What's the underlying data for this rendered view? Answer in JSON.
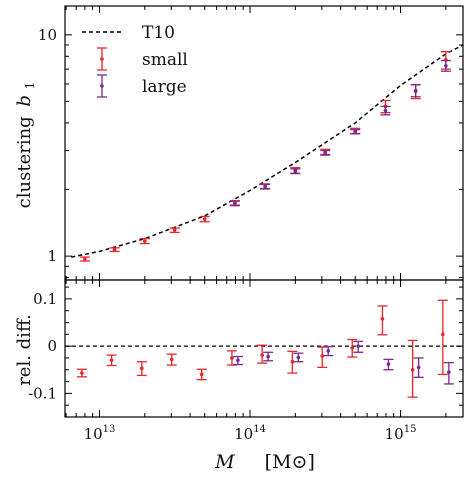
{
  "colors": {
    "small": "#e8262a",
    "large": "#7a2a8c",
    "model": "#000000",
    "frame": "#000000"
  },
  "chart_data": [
    {
      "type": "line",
      "panel": "top",
      "ylabel": "clustering b1",
      "ylabel_text": "clustering",
      "ylabel_symbol": "b",
      "ylabel_sub": "1",
      "x_scale": "log",
      "y_scale": "log",
      "xlim": [
        5900000000000.0,
        2600000000000000.0
      ],
      "ylim": [
        0.78,
        13.5
      ],
      "y_ticks": [
        {
          "value": 1,
          "label": "1"
        },
        {
          "value": 10,
          "label": "10"
        }
      ],
      "legend": {
        "placement": "top-left",
        "entries": [
          {
            "key": "model",
            "label": "T10",
            "style": "dashed line"
          },
          {
            "key": "small",
            "label": "small",
            "style": "errorbar"
          },
          {
            "key": "large",
            "label": "large",
            "style": "errorbar"
          }
        ]
      },
      "model_curve": {
        "name": "T10",
        "points": [
          [
            6500000000000.0,
            0.99
          ],
          [
            10000000000000.0,
            1.05
          ],
          [
            20000000000000.0,
            1.2
          ],
          [
            50000000000000.0,
            1.52
          ],
          [
            100000000000000.0,
            1.98
          ],
          [
            200000000000000.0,
            2.65
          ],
          [
            500000000000000.0,
            4.0
          ],
          [
            1000000000000000.0,
            5.9
          ],
          [
            2000000000000000.0,
            8.2
          ],
          [
            2600000000000000.0,
            9.0
          ]
        ]
      },
      "series": [
        {
          "name": "small",
          "points": [
            {
              "x": 8000000000000.0,
              "y": 0.97,
              "err": 0.02
            },
            {
              "x": 12600000000000.0,
              "y": 1.07,
              "err": 0.02
            },
            {
              "x": 20000000000000.0,
              "y": 1.17,
              "err": 0.03
            },
            {
              "x": 31600000000000.0,
              "y": 1.31,
              "err": 0.03
            },
            {
              "x": 50000000000000.0,
              "y": 1.47,
              "err": 0.04
            },
            {
              "x": 79400000000000.0,
              "y": 1.74,
              "err": 0.04
            },
            {
              "x": 126000000000000.0,
              "y": 2.07,
              "err": 0.05
            },
            {
              "x": 200000000000000.0,
              "y": 2.44,
              "err": 0.07
            },
            {
              "x": 316000000000000.0,
              "y": 2.96,
              "err": 0.08
            },
            {
              "x": 500000000000000.0,
              "y": 3.68,
              "err": 0.1
            },
            {
              "x": 794000000000000.0,
              "y": 4.75,
              "err": 0.3
            },
            {
              "x": 1260000000000000.0,
              "y": 5.55,
              "err": 0.4
            },
            {
              "x": 2000000000000000.0,
              "y": 7.7,
              "err": 0.7
            }
          ]
        },
        {
          "name": "large",
          "points": [
            {
              "x": 79400000000000.0,
              "y": 1.73,
              "err": 0.04
            },
            {
              "x": 126000000000000.0,
              "y": 2.06,
              "err": 0.05
            },
            {
              "x": 200000000000000.0,
              "y": 2.42,
              "err": 0.06
            },
            {
              "x": 316000000000000.0,
              "y": 2.93,
              "err": 0.07
            },
            {
              "x": 500000000000000.0,
              "y": 3.65,
              "err": 0.08
            },
            {
              "x": 794000000000000.0,
              "y": 4.55,
              "err": 0.2
            },
            {
              "x": 1260000000000000.0,
              "y": 5.6,
              "err": 0.35
            },
            {
              "x": 2000000000000000.0,
              "y": 7.25,
              "err": 0.4
            }
          ]
        }
      ]
    },
    {
      "type": "scatter",
      "panel": "bottom",
      "ylabel": "rel. diff.",
      "xlabel": "M [M⊙]",
      "xlabel_symbol": "M",
      "xlabel_unit": "[M⊙]",
      "x_scale": "log",
      "xlim": [
        5900000000000.0,
        2600000000000000.0
      ],
      "ylim": [
        -0.15,
        0.14
      ],
      "reference_line": 0,
      "y_ticks": [
        {
          "value": 0.1,
          "label": "0.1"
        },
        {
          "value": 0,
          "label": "0"
        },
        {
          "value": -0.1,
          "label": "-0.1"
        }
      ],
      "x_ticks": [
        {
          "value": 10000000000000.0,
          "base": "10",
          "exp": "13"
        },
        {
          "value": 100000000000000.0,
          "base": "10",
          "exp": "14"
        },
        {
          "value": 1000000000000000.0,
          "base": "10",
          "exp": "15"
        }
      ],
      "series": [
        {
          "name": "small",
          "points": [
            {
              "x": 8000000000000.0,
              "y": -0.057,
              "lo": -0.065,
              "hi": -0.049
            },
            {
              "x": 12600000000000.0,
              "y": -0.03,
              "lo": -0.041,
              "hi": -0.019
            },
            {
              "x": 20000000000000.0,
              "y": -0.047,
              "lo": -0.062,
              "hi": -0.033
            },
            {
              "x": 31600000000000.0,
              "y": -0.028,
              "lo": -0.04,
              "hi": -0.017
            },
            {
              "x": 50000000000000.0,
              "y": -0.06,
              "lo": -0.071,
              "hi": -0.049
            },
            {
              "x": 79400000000000.0,
              "y": -0.025,
              "lo": -0.04,
              "hi": -0.01
            },
            {
              "x": 126000000000000.0,
              "y": -0.019,
              "lo": -0.036,
              "hi": 0.002
            },
            {
              "x": 200000000000000.0,
              "y": -0.033,
              "lo": -0.057,
              "hi": -0.011
            },
            {
              "x": 316000000000000.0,
              "y": -0.021,
              "lo": -0.045,
              "hi": -0.002
            },
            {
              "x": 500000000000000.0,
              "y": -0.004,
              "lo": -0.023,
              "hi": 0.014
            },
            {
              "x": 794000000000000.0,
              "y": 0.058,
              "lo": 0.024,
              "hi": 0.085
            },
            {
              "x": 1260000000000000.0,
              "y": -0.05,
              "lo": -0.108,
              "hi": 0.012
            },
            {
              "x": 2000000000000000.0,
              "y": 0.025,
              "lo": -0.06,
              "hi": 0.097
            }
          ]
        },
        {
          "name": "large",
          "points": [
            {
              "x": 79400000000000.0,
              "y": -0.03,
              "lo": -0.039,
              "hi": -0.022
            },
            {
              "x": 126000000000000.0,
              "y": -0.022,
              "lo": -0.031,
              "hi": -0.013
            },
            {
              "x": 200000000000000.0,
              "y": -0.024,
              "lo": -0.033,
              "hi": -0.015
            },
            {
              "x": 316000000000000.0,
              "y": -0.01,
              "lo": -0.02,
              "hi": -0.001
            },
            {
              "x": 500000000000000.0,
              "y": 0.0,
              "lo": -0.013,
              "hi": 0.01
            },
            {
              "x": 794000000000000.0,
              "y": -0.038,
              "lo": -0.05,
              "hi": -0.028
            },
            {
              "x": 1260000000000000.0,
              "y": -0.045,
              "lo": -0.066,
              "hi": -0.025
            },
            {
              "x": 2000000000000000.0,
              "y": -0.055,
              "lo": -0.08,
              "hi": -0.035
            }
          ]
        }
      ]
    }
  ]
}
